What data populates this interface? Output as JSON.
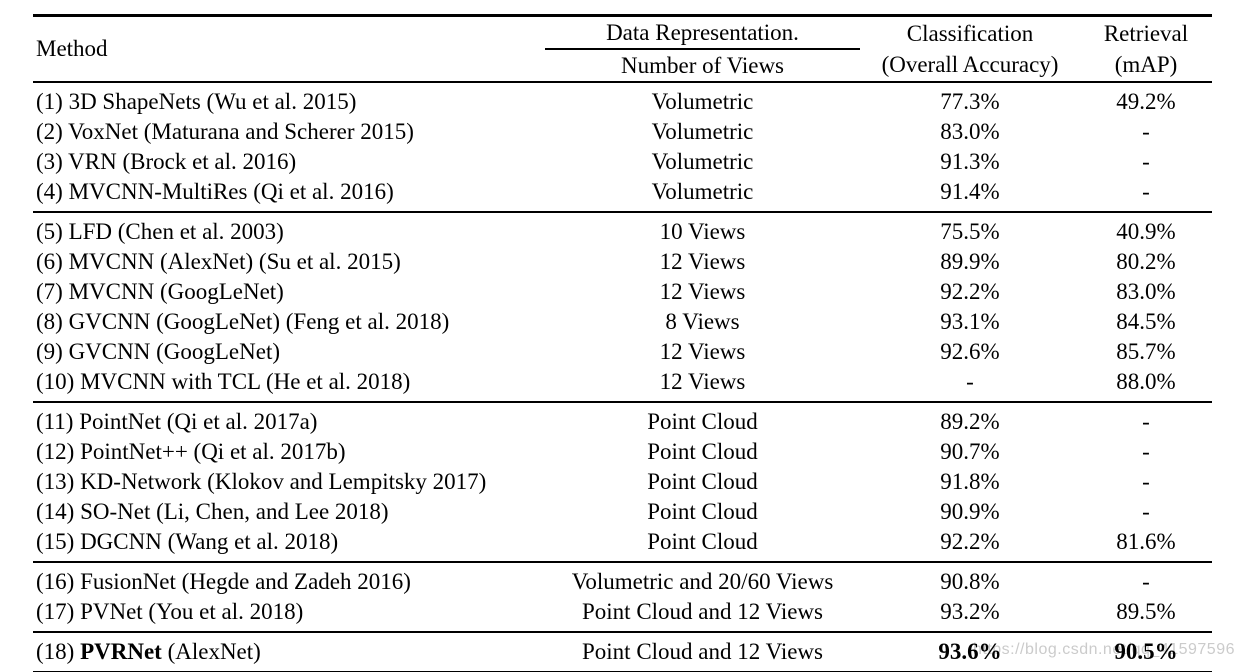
{
  "colors": {
    "text": "#000000",
    "rule": "#000000",
    "watermark_gray": "#b9b9b9",
    "background": "#ffffff"
  },
  "watermark": {
    "text": "https://blog.csdn.net/qq_41597596"
  },
  "table": {
    "header": {
      "method": "Method",
      "data_representation": {
        "line1": "Data Representation.",
        "line2": "Number of Views"
      },
      "classification": {
        "line1": "Classification",
        "line2": "(Overall Accuracy)"
      },
      "retrieval": {
        "line1": "Retrieval",
        "line2": "(mAP)"
      }
    },
    "groups": [
      {
        "name": "volumetric-methods",
        "rows": [
          {
            "method": "(1) 3D ShapeNets (Wu et al. 2015)",
            "representation": "Volumetric",
            "accuracy": "77.3%",
            "map": "49.2%"
          },
          {
            "method": "(2) VoxNet (Maturana and Scherer 2015)",
            "representation": "Volumetric",
            "accuracy": "83.0%",
            "map": "-"
          },
          {
            "method": "(3) VRN (Brock et al. 2016)",
            "representation": "Volumetric",
            "accuracy": "91.3%",
            "map": "-"
          },
          {
            "method": "(4) MVCNN-MultiRes (Qi et al. 2016)",
            "representation": "Volumetric",
            "accuracy": "91.4%",
            "map": "-"
          }
        ]
      },
      {
        "name": "view-based-methods",
        "rows": [
          {
            "method": "(5) LFD (Chen et al. 2003)",
            "representation": "10 Views",
            "accuracy": "75.5%",
            "map": "40.9%"
          },
          {
            "method": "(6) MVCNN (AlexNet) (Su et al. 2015)",
            "representation": "12 Views",
            "accuracy": "89.9%",
            "map": "80.2%"
          },
          {
            "method": "(7) MVCNN (GoogLeNet)",
            "representation": "12 Views",
            "accuracy": "92.2%",
            "map": "83.0%"
          },
          {
            "method": "(8) GVCNN (GoogLeNet) (Feng et al. 2018)",
            "representation": "8 Views",
            "accuracy": "93.1%",
            "map": "84.5%"
          },
          {
            "method": "(9) GVCNN (GoogLeNet)",
            "representation": "12 Views",
            "accuracy": "92.6%",
            "map": "85.7%"
          },
          {
            "method": "(10) MVCNN with TCL (He et al. 2018)",
            "representation": "12 Views",
            "accuracy": "-",
            "map": "88.0%"
          }
        ]
      },
      {
        "name": "point-cloud-methods",
        "rows": [
          {
            "method": "(11) PointNet (Qi et al. 2017a)",
            "representation": "Point Cloud",
            "accuracy": "89.2%",
            "map": "-"
          },
          {
            "method": "(12) PointNet++ (Qi et al. 2017b)",
            "representation": "Point Cloud",
            "accuracy": "90.7%",
            "map": "-"
          },
          {
            "method": "(13) KD-Network (Klokov and Lempitsky 2017)",
            "representation": "Point Cloud",
            "accuracy": "91.8%",
            "map": "-"
          },
          {
            "method": "(14) SO-Net (Li, Chen, and Lee 2018)",
            "representation": "Point Cloud",
            "accuracy": "90.9%",
            "map": "-"
          },
          {
            "method": "(15) DGCNN (Wang et al. 2018)",
            "representation": "Point Cloud",
            "accuracy": "92.2%",
            "map": "81.6%"
          }
        ]
      },
      {
        "name": "fusion-methods",
        "rows": [
          {
            "method": "(16) FusionNet (Hegde and Zadeh 2016)",
            "representation": "Volumetric and 20/60 Views",
            "accuracy": "90.8%",
            "map": "-"
          },
          {
            "method": "(17) PVNet (You et al. 2018)",
            "representation": "Point Cloud and 12 Views",
            "accuracy": "93.2%",
            "map": "89.5%"
          }
        ]
      },
      {
        "name": "proposed-method",
        "rows": [
          {
            "method_segments": [
              {
                "text": "(18) "
              },
              {
                "text": "PVRNet",
                "bold": true
              },
              {
                "text": " (AlexNet)"
              }
            ],
            "representation": "Point Cloud and 12 Views",
            "accuracy": "93.6%",
            "accuracy_bold": true,
            "map": "90.5%",
            "map_bold": true
          }
        ]
      }
    ]
  }
}
